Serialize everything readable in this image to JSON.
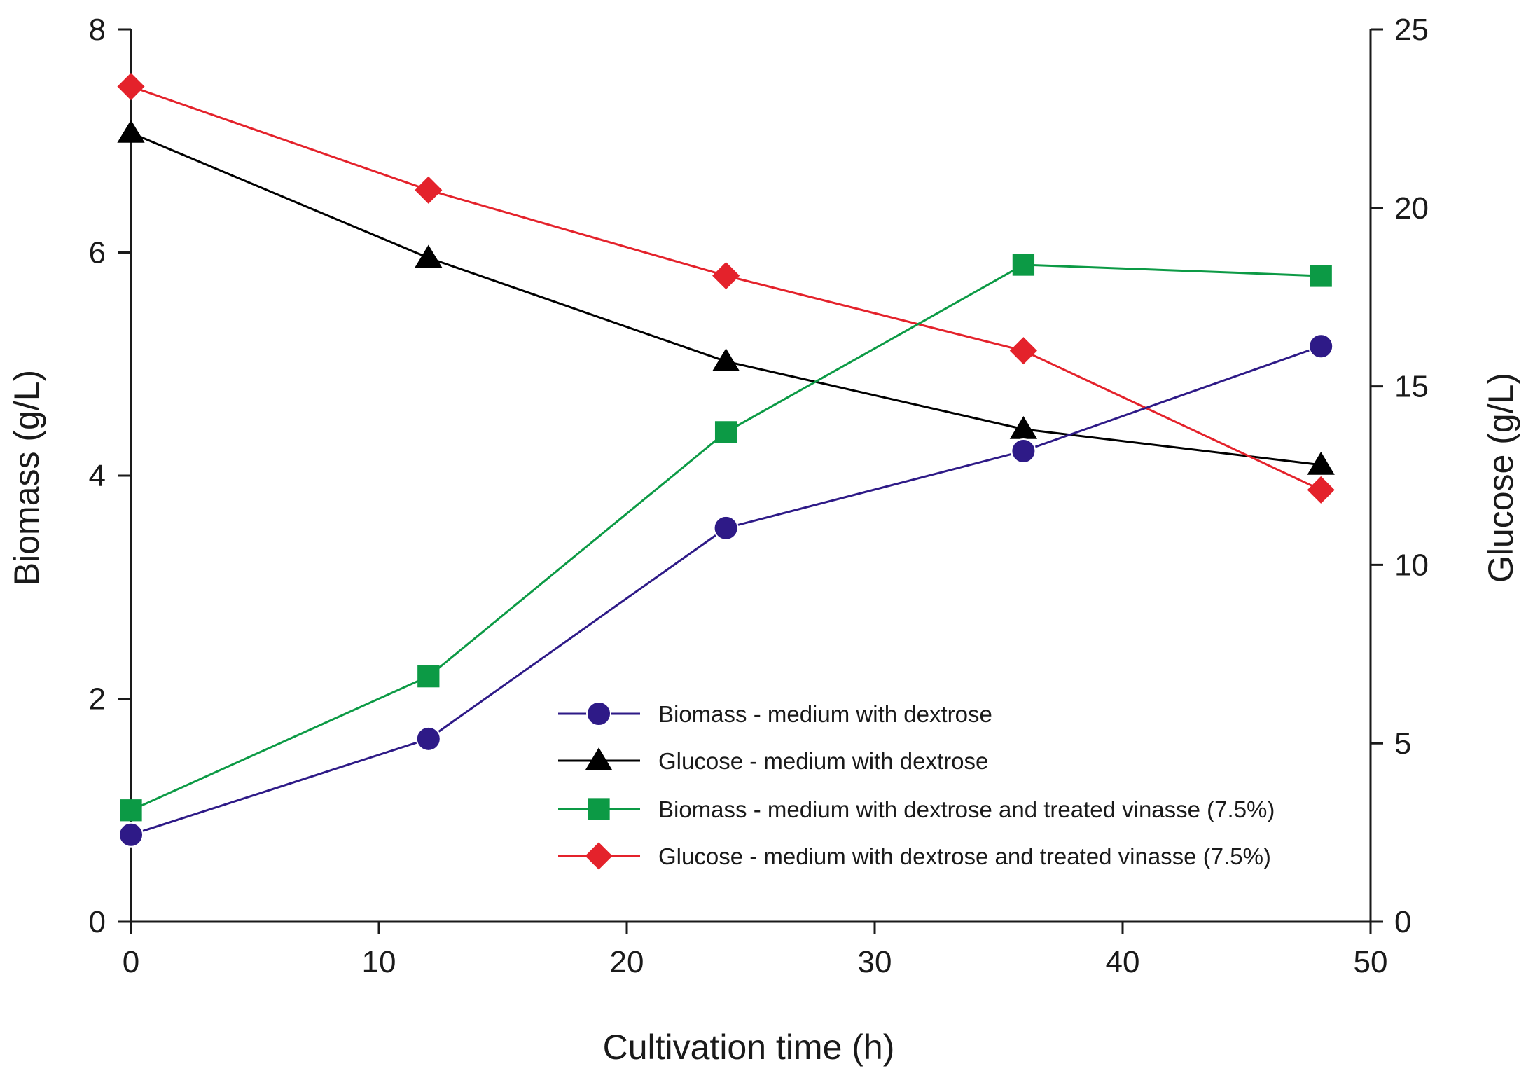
{
  "chart_data": {
    "type": "line",
    "title": "",
    "xlabel": "Cultivation time (h)",
    "ylabel_left": "Biomass (g/L)",
    "ylabel_right": "Glucose (g/L)",
    "xlim": [
      0,
      50
    ],
    "ylim_left": [
      0,
      8
    ],
    "ylim_right": [
      0,
      25
    ],
    "x_ticks": [
      0,
      10,
      20,
      30,
      40,
      50
    ],
    "y_left_ticks": [
      0,
      2,
      4,
      6,
      8
    ],
    "y_right_ticks": [
      0,
      5,
      10,
      15,
      20,
      25
    ],
    "grid": false,
    "legend_position": "center-right, lower half of plot",
    "series": [
      {
        "name": "Biomass - medium with dextrose",
        "axis": "left",
        "marker": "circle",
        "color": "#2e1a87",
        "x": [
          0,
          12,
          24,
          36,
          48
        ],
        "values": [
          0.78,
          1.64,
          3.53,
          4.22,
          5.16
        ]
      },
      {
        "name": "Glucose - medium with dextrose",
        "axis": "right",
        "marker": "triangle",
        "color": "#000000",
        "x": [
          0,
          12,
          24,
          36,
          48
        ],
        "values": [
          22.1,
          18.6,
          15.7,
          13.8,
          12.8
        ]
      },
      {
        "name": "Biomass - medium with dextrose and treated vinasse (7.5%)",
        "axis": "left",
        "marker": "square",
        "color": "#0c9a45",
        "x": [
          0,
          12,
          24,
          36,
          48
        ],
        "values": [
          1.0,
          2.2,
          4.39,
          5.89,
          5.79
        ]
      },
      {
        "name": "Glucose - medium with dextrose and treated vinasse (7.5%)",
        "axis": "right",
        "marker": "diamond",
        "color": "#e4222b",
        "x": [
          0,
          12,
          24,
          36,
          48
        ],
        "values": [
          23.4,
          20.5,
          18.1,
          16.0,
          12.1
        ]
      }
    ]
  }
}
